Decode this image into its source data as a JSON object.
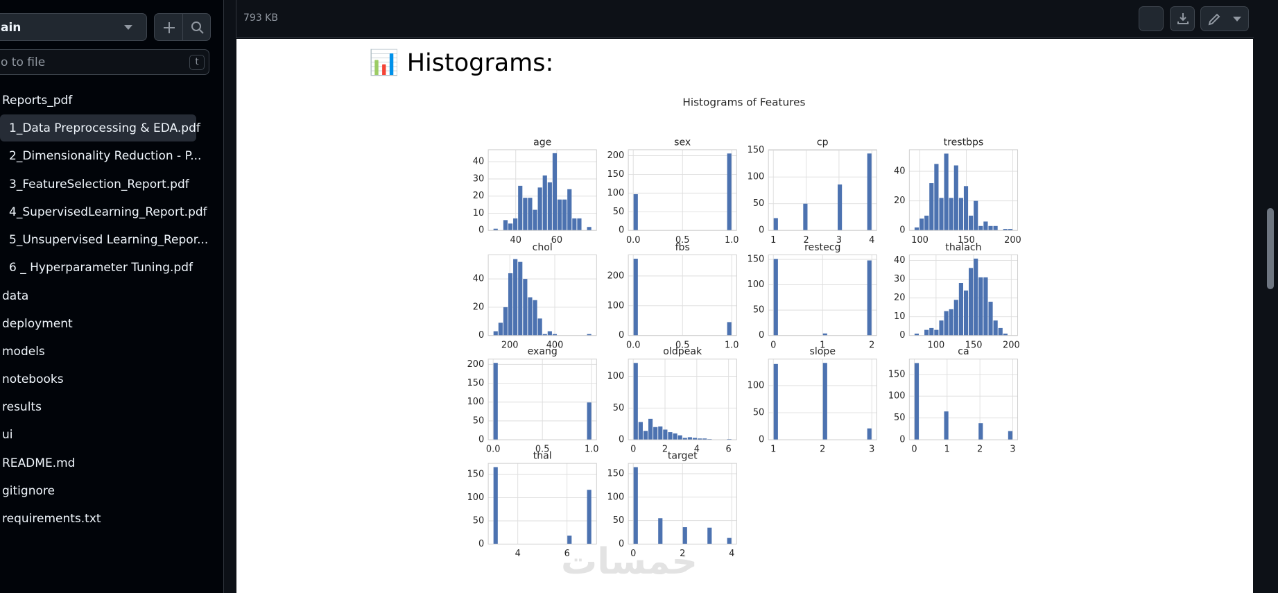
{
  "sidebar": {
    "branch": "ain",
    "search_placeholder": "o to file",
    "shortcut": "t",
    "items": [
      "Reports_pdf",
      "1_Data Preprocessing & EDA.pdf",
      "2_Dimensionality Reduction - P...",
      "3_FeatureSelection_Report.pdf",
      "4_SupervisedLearning_Report.pdf",
      "5_Unsupervised Learning_Repor...",
      "6 _ Hyperparameter Tuning.pdf",
      "data",
      "deployment",
      "models",
      "notebooks",
      "results",
      "ui",
      "README.md",
      "gitignore",
      "requirements.txt"
    ]
  },
  "toolbar": {
    "file_size": "793 KB"
  },
  "document": {
    "heading": "📊 Histograms:",
    "figure_title": "Histograms of Features",
    "watermark": "خمسات"
  },
  "chart_data": [
    {
      "type": "histogram",
      "title": "age",
      "color": "#4c72b0",
      "grid": true,
      "bins": [
        29,
        31.4,
        33.8,
        36.2,
        38.6,
        41,
        43.4,
        45.8,
        48.2,
        50.6,
        53,
        55.4,
        57.8,
        60.2,
        62.6,
        65,
        67.4,
        69.8,
        72.2,
        74.6,
        77
      ],
      "values": [
        1,
        0,
        6,
        4,
        7,
        26,
        19,
        19,
        12,
        25,
        32,
        28,
        45,
        18,
        18,
        24,
        7,
        7,
        0,
        2
      ],
      "xlim": [
        26.6,
        79.4
      ],
      "xticks": [
        40,
        60
      ],
      "ylim": [
        0,
        47
      ],
      "yticks": [
        0,
        10,
        20,
        30,
        40
      ]
    },
    {
      "type": "histogram",
      "title": "sex",
      "color": "#4c72b0",
      "grid": true,
      "bins": [
        0,
        0.05,
        0.1,
        0.15,
        0.2,
        0.25,
        0.3,
        0.35,
        0.4,
        0.45,
        0.5,
        0.55,
        0.6,
        0.65,
        0.7,
        0.75,
        0.8,
        0.85,
        0.9,
        0.95,
        1
      ],
      "values": [
        97,
        0,
        0,
        0,
        0,
        0,
        0,
        0,
        0,
        0,
        0,
        0,
        0,
        0,
        0,
        0,
        0,
        0,
        0,
        206
      ],
      "xlim": [
        -0.05,
        1.05
      ],
      "xticks": [
        {
          "value": 0,
          "label": "0.0"
        },
        0.5,
        {
          "value": 1,
          "label": "1.0"
        }
      ],
      "ylim": [
        0,
        216
      ],
      "yticks": [
        0,
        50,
        100,
        150,
        200
      ]
    },
    {
      "type": "histogram",
      "title": "cp",
      "color": "#4c72b0",
      "grid": true,
      "bins": [
        1,
        1.15,
        1.3,
        1.45,
        1.6,
        1.75,
        1.9,
        2.05,
        2.2,
        2.35,
        2.5,
        2.65,
        2.8,
        2.95,
        3.1,
        3.25,
        3.4,
        3.55,
        3.7,
        3.85,
        4
      ],
      "values": [
        23,
        0,
        0,
        0,
        0,
        0,
        50,
        0,
        0,
        0,
        0,
        0,
        0,
        86,
        0,
        0,
        0,
        0,
        0,
        144
      ],
      "xlim": [
        0.85,
        4.15
      ],
      "xticks": [
        1,
        2,
        3,
        4
      ],
      "ylim": [
        0,
        151
      ],
      "yticks": [
        0,
        50,
        100,
        150
      ]
    },
    {
      "type": "histogram",
      "title": "trestbps",
      "color": "#4c72b0",
      "grid": true,
      "bins": [
        94,
        99.3,
        104.6,
        109.9,
        115.2,
        120.5,
        125.8,
        131.1,
        136.4,
        141.7,
        147,
        152.3,
        157.6,
        162.9,
        168.2,
        173.5,
        178.8,
        184.1,
        189.4,
        194.7,
        200
      ],
      "values": [
        2,
        8,
        10,
        32,
        45,
        22,
        52,
        22,
        44,
        22,
        30,
        10,
        20,
        3,
        6,
        3,
        3,
        0,
        1,
        1
      ],
      "xlim": [
        88.7,
        205.3
      ],
      "xticks": [
        100,
        150,
        200
      ],
      "ylim": [
        0,
        54.6
      ],
      "yticks": [
        0,
        20,
        40
      ]
    },
    {
      "type": "histogram",
      "title": "chol",
      "color": "#4c72b0",
      "grid": true,
      "bins": [
        126,
        147.9,
        169.8,
        191.7,
        213.6,
        235.5,
        257.4,
        279.3,
        301.2,
        323.1,
        345,
        366.9,
        388.8,
        410.7,
        432.6,
        454.5,
        476.4,
        498.3,
        520.2,
        542.1,
        564
      ],
      "values": [
        3,
        9,
        20,
        44,
        54,
        52,
        40,
        27,
        25,
        12,
        1,
        3,
        1,
        0,
        0,
        0,
        0,
        0,
        0,
        1
      ],
      "xlim": [
        104,
        586
      ],
      "xticks": [
        200,
        400
      ],
      "ylim": [
        0,
        57
      ],
      "yticks": [
        0,
        20,
        40
      ]
    },
    {
      "type": "histogram",
      "title": "fbs",
      "color": "#4c72b0",
      "grid": true,
      "bins": [
        0,
        0.05,
        0.1,
        0.15,
        0.2,
        0.25,
        0.3,
        0.35,
        0.4,
        0.45,
        0.5,
        0.55,
        0.6,
        0.65,
        0.7,
        0.75,
        0.8,
        0.85,
        0.9,
        0.95,
        1
      ],
      "values": [
        258,
        0,
        0,
        0,
        0,
        0,
        0,
        0,
        0,
        0,
        0,
        0,
        0,
        0,
        0,
        0,
        0,
        0,
        0,
        45
      ],
      "xlim": [
        -0.05,
        1.05
      ],
      "xticks": [
        {
          "value": 0,
          "label": "0.0"
        },
        0.5,
        {
          "value": 1,
          "label": "1.0"
        }
      ],
      "ylim": [
        0,
        271
      ],
      "yticks": [
        0,
        100,
        200
      ]
    },
    {
      "type": "histogram",
      "title": "restecg",
      "color": "#4c72b0",
      "grid": true,
      "bins": [
        0,
        0.1,
        0.2,
        0.3,
        0.4,
        0.5,
        0.6,
        0.7,
        0.8,
        0.9,
        1,
        1.1,
        1.2,
        1.3,
        1.4,
        1.5,
        1.6,
        1.7,
        1.8,
        1.9,
        2
      ],
      "values": [
        151,
        0,
        0,
        0,
        0,
        0,
        0,
        0,
        0,
        0,
        4,
        0,
        0,
        0,
        0,
        0,
        0,
        0,
        0,
        148
      ],
      "xlim": [
        -0.1,
        2.1
      ],
      "xticks": [
        0,
        1,
        2
      ],
      "ylim": [
        0,
        159
      ],
      "yticks": [
        0,
        50,
        100,
        150
      ]
    },
    {
      "type": "histogram",
      "title": "thalach",
      "color": "#4c72b0",
      "grid": true,
      "bins": [
        71,
        77.55,
        84.1,
        90.65,
        97.2,
        103.75,
        110.3,
        116.85,
        123.4,
        129.95,
        136.5,
        143.05,
        149.6,
        156.15,
        162.7,
        169.25,
        175.8,
        182.35,
        188.9,
        195.45,
        202
      ],
      "values": [
        1,
        0,
        3,
        4,
        3,
        8,
        13,
        14,
        19,
        28,
        24,
        36,
        41,
        31,
        31,
        18,
        8,
        4,
        1,
        0
      ],
      "xlim": [
        64.5,
        208.5
      ],
      "xticks": [
        100,
        150,
        200
      ],
      "ylim": [
        0,
        43
      ],
      "yticks": [
        0,
        10,
        20,
        30,
        40
      ]
    },
    {
      "type": "histogram",
      "title": "exang",
      "color": "#4c72b0",
      "grid": true,
      "bins": [
        0,
        0.05,
        0.1,
        0.15,
        0.2,
        0.25,
        0.3,
        0.35,
        0.4,
        0.45,
        0.5,
        0.55,
        0.6,
        0.65,
        0.7,
        0.75,
        0.8,
        0.85,
        0.9,
        0.95,
        1
      ],
      "values": [
        204,
        0,
        0,
        0,
        0,
        0,
        0,
        0,
        0,
        0,
        0,
        0,
        0,
        0,
        0,
        0,
        0,
        0,
        0,
        99
      ],
      "xlim": [
        -0.05,
        1.05
      ],
      "xticks": [
        {
          "value": 0,
          "label": "0.0"
        },
        0.5,
        {
          "value": 1,
          "label": "1.0"
        }
      ],
      "ylim": [
        0,
        214
      ],
      "yticks": [
        0,
        50,
        100,
        150,
        200
      ]
    },
    {
      "type": "histogram",
      "title": "oldpeak",
      "color": "#4c72b0",
      "grid": true,
      "bins": [
        0,
        0.31,
        0.62,
        0.93,
        1.24,
        1.55,
        1.86,
        2.17,
        2.48,
        2.79,
        3.1,
        3.41,
        3.72,
        4.03,
        4.34,
        4.65,
        4.96,
        5.27,
        5.58,
        5.89,
        6.2
      ],
      "values": [
        121,
        28,
        14,
        33,
        20,
        21,
        16,
        12,
        10,
        7,
        3,
        4,
        3,
        2,
        2,
        1,
        0,
        0,
        0,
        1
      ],
      "xlim": [
        -0.31,
        6.51
      ],
      "xticks": [
        0,
        2,
        4,
        6
      ],
      "ylim": [
        0,
        127
      ],
      "yticks": [
        0,
        50,
        100
      ]
    },
    {
      "type": "histogram",
      "title": "slope",
      "color": "#4c72b0",
      "grid": true,
      "bins": [
        1,
        1.1,
        1.2,
        1.3,
        1.4,
        1.5,
        1.6,
        1.7,
        1.8,
        1.9,
        2,
        2.1,
        2.2,
        2.3,
        2.4,
        2.5,
        2.6,
        2.7,
        2.8,
        2.9,
        3
      ],
      "values": [
        140,
        0,
        0,
        0,
        0,
        0,
        0,
        0,
        0,
        0,
        142,
        0,
        0,
        0,
        0,
        0,
        0,
        0,
        0,
        21
      ],
      "xlim": [
        0.9,
        3.1
      ],
      "xticks": [
        1,
        2,
        3
      ],
      "ylim": [
        0,
        149
      ],
      "yticks": [
        0,
        50,
        100
      ]
    },
    {
      "type": "histogram",
      "title": "ca",
      "color": "#4c72b0",
      "grid": true,
      "bins": [
        0,
        0.15,
        0.3,
        0.45,
        0.6,
        0.75,
        0.9,
        1.05,
        1.2,
        1.35,
        1.5,
        1.65,
        1.8,
        1.95,
        2.1,
        2.25,
        2.4,
        2.55,
        2.7,
        2.85,
        3
      ],
      "values": [
        176,
        0,
        0,
        0,
        0,
        0,
        65,
        0,
        0,
        0,
        0,
        0,
        0,
        38,
        0,
        0,
        0,
        0,
        0,
        20
      ],
      "xlim": [
        -0.15,
        3.15
      ],
      "xticks": [
        0,
        1,
        2,
        3
      ],
      "ylim": [
        0,
        185
      ],
      "yticks": [
        0,
        50,
        100,
        150
      ]
    },
    {
      "type": "histogram",
      "title": "thal",
      "color": "#4c72b0",
      "grid": true,
      "bins": [
        3,
        3.2,
        3.4,
        3.6,
        3.8,
        4,
        4.2,
        4.4,
        4.6,
        4.8,
        5,
        5.2,
        5.4,
        5.6,
        5.8,
        6,
        6.2,
        6.4,
        6.6,
        6.8,
        7
      ],
      "values": [
        166,
        0,
        0,
        0,
        0,
        0,
        0,
        0,
        0,
        0,
        0,
        0,
        0,
        0,
        0,
        18,
        0,
        0,
        0,
        117
      ],
      "xlim": [
        2.8,
        7.2
      ],
      "xticks": [
        4,
        6
      ],
      "ylim": [
        0,
        174
      ],
      "yticks": [
        0,
        50,
        100,
        150
      ]
    },
    {
      "type": "histogram",
      "title": "target",
      "color": "#4c72b0",
      "grid": true,
      "bins": [
        0,
        0.2,
        0.4,
        0.6,
        0.8,
        1,
        1.2,
        1.4,
        1.6,
        1.8,
        2,
        2.2,
        2.4,
        2.6,
        2.8,
        3,
        3.2,
        3.4,
        3.6,
        3.8,
        4
      ],
      "values": [
        164,
        0,
        0,
        0,
        0,
        55,
        0,
        0,
        0,
        0,
        36,
        0,
        0,
        0,
        0,
        35,
        0,
        0,
        0,
        13
      ],
      "xlim": [
        -0.2,
        4.2
      ],
      "xticks": [
        0,
        2,
        4
      ],
      "ylim": [
        0,
        172
      ],
      "yticks": [
        0,
        50,
        100,
        150
      ]
    }
  ]
}
